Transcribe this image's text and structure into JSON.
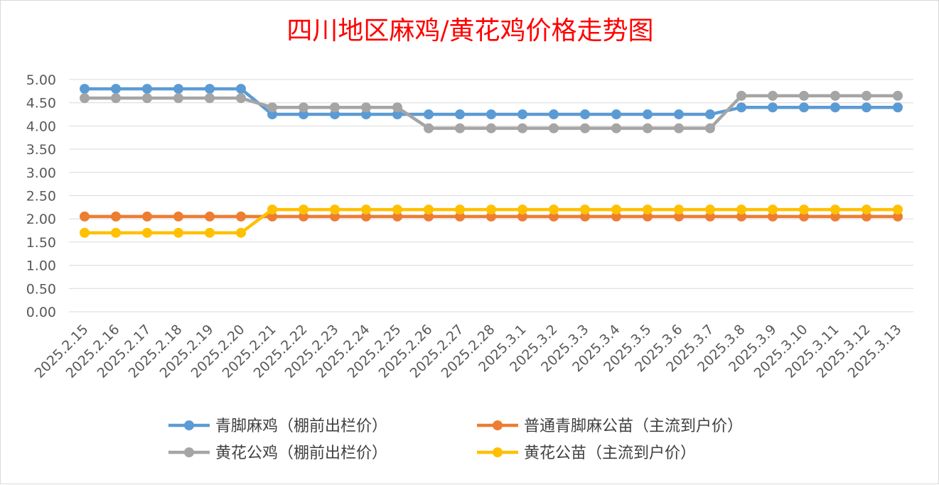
{
  "chart_data": {
    "type": "line",
    "title": "四川地区麻鸡/黄花鸡价格走势图",
    "xlabel": "",
    "ylabel": "",
    "ylim": [
      0,
      5
    ],
    "y_ticks": [
      "0.00",
      "0.50",
      "1.00",
      "1.50",
      "2.00",
      "2.50",
      "3.00",
      "3.50",
      "4.00",
      "4.50",
      "5.00"
    ],
    "grid": true,
    "legend_position": "bottom",
    "categories": [
      "2025.2.15",
      "2025.2.16",
      "2025.2.17",
      "2025.2.18",
      "2025.2.19",
      "2025.2.20",
      "2025.2.21",
      "2025.2.22",
      "2025.2.23",
      "2025.2.24",
      "2025.2.25",
      "2025.2.26",
      "2025.2.27",
      "2025.2.28",
      "2025.3.1",
      "2025.3.2",
      "2025.3.3",
      "2025.3.4",
      "2025.3.5",
      "2025.3.6",
      "2025.3.7",
      "2025.3.8",
      "2025.3.9",
      "2025.3.10",
      "2025.3.11",
      "2025.3.12",
      "2025.3.13"
    ],
    "series": [
      {
        "name": "青脚麻鸡（棚前出栏价）",
        "color": "#5b9bd5",
        "values": [
          4.8,
          4.8,
          4.8,
          4.8,
          4.8,
          4.8,
          4.25,
          4.25,
          4.25,
          4.25,
          4.25,
          4.25,
          4.25,
          4.25,
          4.25,
          4.25,
          4.25,
          4.25,
          4.25,
          4.25,
          4.25,
          4.4,
          4.4,
          4.4,
          4.4,
          4.4,
          4.4
        ]
      },
      {
        "name": "普通青脚麻公苗（主流到户价）",
        "color": "#ed7d31",
        "values": [
          2.05,
          2.05,
          2.05,
          2.05,
          2.05,
          2.05,
          2.05,
          2.05,
          2.05,
          2.05,
          2.05,
          2.05,
          2.05,
          2.05,
          2.05,
          2.05,
          2.05,
          2.05,
          2.05,
          2.05,
          2.05,
          2.05,
          2.05,
          2.05,
          2.05,
          2.05,
          2.05
        ]
      },
      {
        "name": "黄花公鸡（棚前出栏价）",
        "color": "#a5a5a5",
        "values": [
          4.6,
          4.6,
          4.6,
          4.6,
          4.6,
          4.6,
          4.4,
          4.4,
          4.4,
          4.4,
          4.4,
          3.95,
          3.95,
          3.95,
          3.95,
          3.95,
          3.95,
          3.95,
          3.95,
          3.95,
          3.95,
          4.65,
          4.65,
          4.65,
          4.65,
          4.65,
          4.65
        ]
      },
      {
        "name": "黄花公苗（主流到户价）",
        "color": "#ffc000",
        "values": [
          1.7,
          1.7,
          1.7,
          1.7,
          1.7,
          1.7,
          2.2,
          2.2,
          2.2,
          2.2,
          2.2,
          2.2,
          2.2,
          2.2,
          2.2,
          2.2,
          2.2,
          2.2,
          2.2,
          2.2,
          2.2,
          2.2,
          2.2,
          2.2,
          2.2,
          2.2,
          2.2
        ]
      }
    ]
  }
}
